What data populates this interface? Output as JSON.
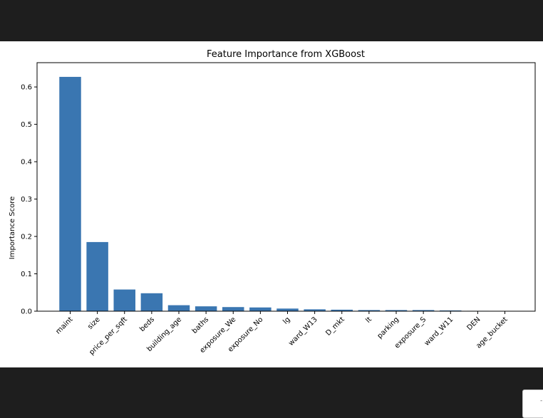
{
  "output": {
    "corner_glyph": "-"
  },
  "chart_data": {
    "type": "bar",
    "title": "Feature Importance from XGBoost",
    "xlabel": "",
    "ylabel": "Importance Score",
    "ylim": [
      0,
      0.665
    ],
    "yticks": [
      "0.0",
      "0.1",
      "0.2",
      "0.3",
      "0.4",
      "0.5",
      "0.6"
    ],
    "grid": false,
    "bar_color": "#3a76b1",
    "categories": [
      "maint",
      "size",
      "price_per_sqft",
      "beds",
      "building_age",
      "baths",
      "exposure_We",
      "exposure_No",
      "lg",
      "ward_W13",
      "D_mkt",
      "lt",
      "parking",
      "exposure_S",
      "ward_W11",
      "DEN",
      "age_bucket"
    ],
    "values": [
      0.627,
      0.185,
      0.058,
      0.048,
      0.016,
      0.013,
      0.011,
      0.01,
      0.007,
      0.005,
      0.004,
      0.003,
      0.003,
      0.003,
      0.002,
      0.001,
      0.0005
    ]
  }
}
